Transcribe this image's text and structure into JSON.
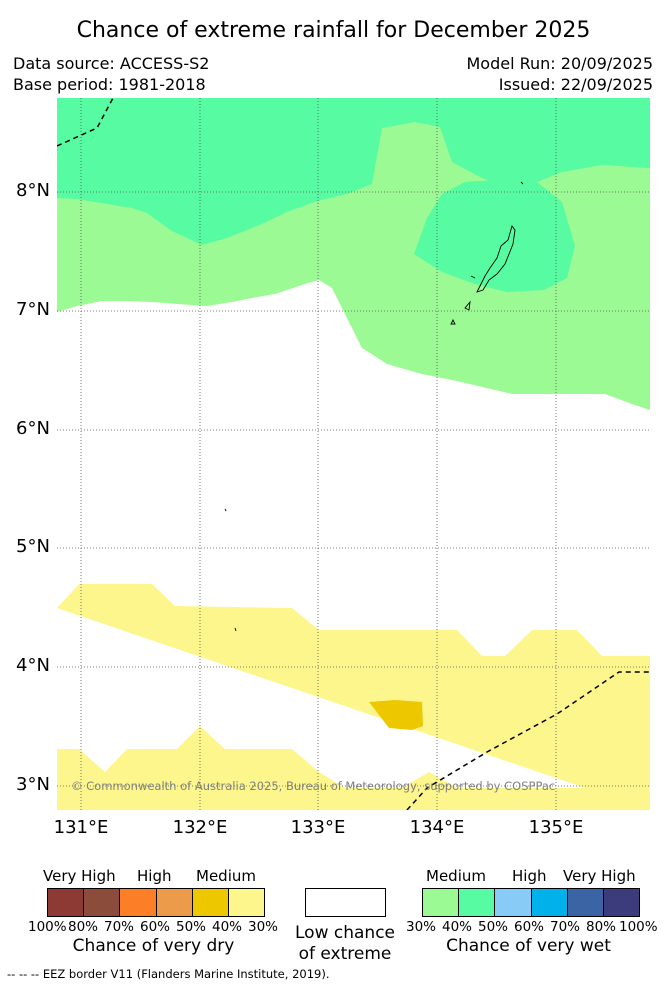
{
  "title": "Chance of extreme rainfall for December 2025",
  "data_source": "Data source: ACCESS-S2",
  "base_period": "Base period: 1981-2018",
  "model_run": "Model Run: 20/09/2025",
  "issued": "Issued: 22/09/2025",
  "map": {
    "lat_labels": [
      "8°N",
      "7°N",
      "6°N",
      "5°N",
      "4°N",
      "3°N"
    ],
    "lon_labels": [
      "131°E",
      "132°E",
      "133°E",
      "134°E",
      "135°E"
    ],
    "copyright": "© Commonwealth of Australia 2025, Bureau of Meteorology, supported by COSPPac",
    "colors": {
      "wet_medium": "#9bfa93",
      "wet_medium_high": "#57fba1",
      "dry_medium": "#fdf68d",
      "dry_medium_high": "#edc800"
    }
  },
  "legend": {
    "dry": {
      "category_labels": [
        "Very High",
        "High",
        "Medium"
      ],
      "percent_labels": [
        "100%",
        "80%",
        "70%",
        "60%",
        "50%",
        "40%",
        "30%"
      ],
      "colors": [
        "#8e3a34",
        "#8b4c3c",
        "#fc7f27",
        "#ec9b4a",
        "#edc800",
        "#fdf68d"
      ],
      "caption": "Chance of very dry"
    },
    "low": {
      "caption_line1": "Low chance",
      "caption_line2": "of extreme"
    },
    "wet": {
      "category_labels": [
        "Medium",
        "High",
        "Very High"
      ],
      "percent_labels": [
        "30%",
        "40%",
        "50%",
        "60%",
        "70%",
        "80%",
        "100%"
      ],
      "colors": [
        "#9bfa93",
        "#57fba1",
        "#89cbf7",
        "#00b1ea",
        "#3a64a4",
        "#3c3b7c"
      ],
      "caption": "Chance of very wet"
    }
  },
  "footer": "--  --  -- EEZ border V11 (Flanders Marine Institute, 2019)."
}
